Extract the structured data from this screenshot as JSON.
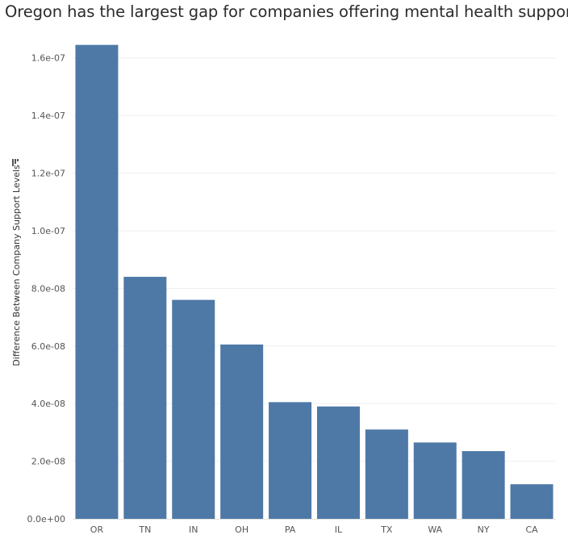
{
  "chart_data": {
    "type": "bar",
    "title": "Oregon has the largest gap for companies offering mental health support",
    "ylabel": "Difference Between Company Support Levels",
    "xlabel": "",
    "categories": [
      "OR",
      "TN",
      "IN",
      "OH",
      "PA",
      "IL",
      "TX",
      "WA",
      "NY",
      "CA"
    ],
    "values": [
      1.645e-07,
      8.4e-08,
      7.6e-08,
      6.05e-08,
      4.05e-08,
      3.9e-08,
      3.1e-08,
      2.65e-08,
      2.35e-08,
      1.2e-08
    ],
    "ylim": [
      0,
      1.7e-07
    ],
    "yticks": [
      0,
      2e-08,
      4e-08,
      6e-08,
      8e-08,
      1e-07,
      1.2e-07,
      1.4e-07,
      1.6e-07
    ],
    "ytick_labels": [
      "0.0e+00",
      "2.0e-08",
      "4.0e-08",
      "6.0e-08",
      "8.0e-08",
      "1.0e-07",
      "1.2e-07",
      "1.4e-07",
      "1.6e-07"
    ],
    "grid": true,
    "colors": {
      "bar": "#4e79a7",
      "grid": "#efefef"
    },
    "sort_icon": "sort-descending-icon"
  }
}
